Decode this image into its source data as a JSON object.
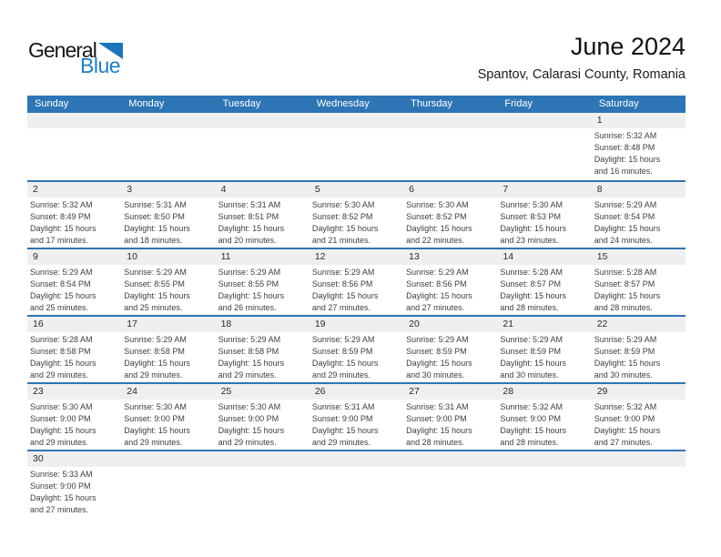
{
  "colors": {
    "accent": "#2E75B5",
    "strip": "#EFEFEF",
    "logo_blue": "#1F7FC4",
    "triangle_blue": "#1B75BC"
  },
  "logo": {
    "word1": "General",
    "word2": "Blue"
  },
  "header": {
    "title": "June 2024",
    "subtitle": "Spantov, Calarasi County, Romania"
  },
  "weekdays": [
    "Sunday",
    "Monday",
    "Tuesday",
    "Wednesday",
    "Thursday",
    "Friday",
    "Saturday"
  ],
  "weeks": [
    [
      {
        "day": ""
      },
      {
        "day": ""
      },
      {
        "day": ""
      },
      {
        "day": ""
      },
      {
        "day": ""
      },
      {
        "day": ""
      },
      {
        "day": "1",
        "sunrise": "Sunrise: 5:32 AM",
        "sunset": "Sunset: 8:48 PM",
        "daylight1": "Daylight: 15 hours",
        "daylight2": "and 16 minutes."
      }
    ],
    [
      {
        "day": "2",
        "sunrise": "Sunrise: 5:32 AM",
        "sunset": "Sunset: 8:49 PM",
        "daylight1": "Daylight: 15 hours",
        "daylight2": "and 17 minutes."
      },
      {
        "day": "3",
        "sunrise": "Sunrise: 5:31 AM",
        "sunset": "Sunset: 8:50 PM",
        "daylight1": "Daylight: 15 hours",
        "daylight2": "and 18 minutes."
      },
      {
        "day": "4",
        "sunrise": "Sunrise: 5:31 AM",
        "sunset": "Sunset: 8:51 PM",
        "daylight1": "Daylight: 15 hours",
        "daylight2": "and 20 minutes."
      },
      {
        "day": "5",
        "sunrise": "Sunrise: 5:30 AM",
        "sunset": "Sunset: 8:52 PM",
        "daylight1": "Daylight: 15 hours",
        "daylight2": "and 21 minutes."
      },
      {
        "day": "6",
        "sunrise": "Sunrise: 5:30 AM",
        "sunset": "Sunset: 8:52 PM",
        "daylight1": "Daylight: 15 hours",
        "daylight2": "and 22 minutes."
      },
      {
        "day": "7",
        "sunrise": "Sunrise: 5:30 AM",
        "sunset": "Sunset: 8:53 PM",
        "daylight1": "Daylight: 15 hours",
        "daylight2": "and 23 minutes."
      },
      {
        "day": "8",
        "sunrise": "Sunrise: 5:29 AM",
        "sunset": "Sunset: 8:54 PM",
        "daylight1": "Daylight: 15 hours",
        "daylight2": "and 24 minutes."
      }
    ],
    [
      {
        "day": "9",
        "sunrise": "Sunrise: 5:29 AM",
        "sunset": "Sunset: 8:54 PM",
        "daylight1": "Daylight: 15 hours",
        "daylight2": "and 25 minutes."
      },
      {
        "day": "10",
        "sunrise": "Sunrise: 5:29 AM",
        "sunset": "Sunset: 8:55 PM",
        "daylight1": "Daylight: 15 hours",
        "daylight2": "and 25 minutes."
      },
      {
        "day": "11",
        "sunrise": "Sunrise: 5:29 AM",
        "sunset": "Sunset: 8:55 PM",
        "daylight1": "Daylight: 15 hours",
        "daylight2": "and 26 minutes."
      },
      {
        "day": "12",
        "sunrise": "Sunrise: 5:29 AM",
        "sunset": "Sunset: 8:56 PM",
        "daylight1": "Daylight: 15 hours",
        "daylight2": "and 27 minutes."
      },
      {
        "day": "13",
        "sunrise": "Sunrise: 5:29 AM",
        "sunset": "Sunset: 8:56 PM",
        "daylight1": "Daylight: 15 hours",
        "daylight2": "and 27 minutes."
      },
      {
        "day": "14",
        "sunrise": "Sunrise: 5:28 AM",
        "sunset": "Sunset: 8:57 PM",
        "daylight1": "Daylight: 15 hours",
        "daylight2": "and 28 minutes."
      },
      {
        "day": "15",
        "sunrise": "Sunrise: 5:28 AM",
        "sunset": "Sunset: 8:57 PM",
        "daylight1": "Daylight: 15 hours",
        "daylight2": "and 28 minutes."
      }
    ],
    [
      {
        "day": "16",
        "sunrise": "Sunrise: 5:28 AM",
        "sunset": "Sunset: 8:58 PM",
        "daylight1": "Daylight: 15 hours",
        "daylight2": "and 29 minutes."
      },
      {
        "day": "17",
        "sunrise": "Sunrise: 5:29 AM",
        "sunset": "Sunset: 8:58 PM",
        "daylight1": "Daylight: 15 hours",
        "daylight2": "and 29 minutes."
      },
      {
        "day": "18",
        "sunrise": "Sunrise: 5:29 AM",
        "sunset": "Sunset: 8:58 PM",
        "daylight1": "Daylight: 15 hours",
        "daylight2": "and 29 minutes."
      },
      {
        "day": "19",
        "sunrise": "Sunrise: 5:29 AM",
        "sunset": "Sunset: 8:59 PM",
        "daylight1": "Daylight: 15 hours",
        "daylight2": "and 29 minutes."
      },
      {
        "day": "20",
        "sunrise": "Sunrise: 5:29 AM",
        "sunset": "Sunset: 8:59 PM",
        "daylight1": "Daylight: 15 hours",
        "daylight2": "and 30 minutes."
      },
      {
        "day": "21",
        "sunrise": "Sunrise: 5:29 AM",
        "sunset": "Sunset: 8:59 PM",
        "daylight1": "Daylight: 15 hours",
        "daylight2": "and 30 minutes."
      },
      {
        "day": "22",
        "sunrise": "Sunrise: 5:29 AM",
        "sunset": "Sunset: 8:59 PM",
        "daylight1": "Daylight: 15 hours",
        "daylight2": "and 30 minutes."
      }
    ],
    [
      {
        "day": "23",
        "sunrise": "Sunrise: 5:30 AM",
        "sunset": "Sunset: 9:00 PM",
        "daylight1": "Daylight: 15 hours",
        "daylight2": "and 29 minutes."
      },
      {
        "day": "24",
        "sunrise": "Sunrise: 5:30 AM",
        "sunset": "Sunset: 9:00 PM",
        "daylight1": "Daylight: 15 hours",
        "daylight2": "and 29 minutes."
      },
      {
        "day": "25",
        "sunrise": "Sunrise: 5:30 AM",
        "sunset": "Sunset: 9:00 PM",
        "daylight1": "Daylight: 15 hours",
        "daylight2": "and 29 minutes."
      },
      {
        "day": "26",
        "sunrise": "Sunrise: 5:31 AM",
        "sunset": "Sunset: 9:00 PM",
        "daylight1": "Daylight: 15 hours",
        "daylight2": "and 29 minutes."
      },
      {
        "day": "27",
        "sunrise": "Sunrise: 5:31 AM",
        "sunset": "Sunset: 9:00 PM",
        "daylight1": "Daylight: 15 hours",
        "daylight2": "and 28 minutes."
      },
      {
        "day": "28",
        "sunrise": "Sunrise: 5:32 AM",
        "sunset": "Sunset: 9:00 PM",
        "daylight1": "Daylight: 15 hours",
        "daylight2": "and 28 minutes."
      },
      {
        "day": "29",
        "sunrise": "Sunrise: 5:32 AM",
        "sunset": "Sunset: 9:00 PM",
        "daylight1": "Daylight: 15 hours",
        "daylight2": "and 27 minutes."
      }
    ],
    [
      {
        "day": "30",
        "sunrise": "Sunrise: 5:33 AM",
        "sunset": "Sunset: 9:00 PM",
        "daylight1": "Daylight: 15 hours",
        "daylight2": "and 27 minutes."
      },
      {
        "day": ""
      },
      {
        "day": ""
      },
      {
        "day": ""
      },
      {
        "day": ""
      },
      {
        "day": ""
      },
      {
        "day": ""
      }
    ]
  ]
}
